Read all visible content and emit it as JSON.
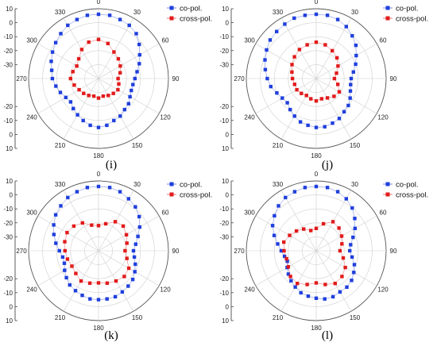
{
  "chart_data": [
    {
      "type": "polar-scatter",
      "caption": "(i)",
      "legend": [
        "co-pol.",
        "cross-pol."
      ],
      "angle_ticks": [
        "0",
        "30",
        "60",
        "90",
        "120",
        "150",
        "180",
        "210",
        "240",
        "270",
        "300",
        "330"
      ],
      "radial_ticks_upper": [
        "10",
        "0",
        "-10",
        "-20",
        "-30"
      ],
      "radial_ticks_lower": [
        "-20",
        "-10",
        "0",
        "10"
      ],
      "rlim": [
        -40,
        10
      ],
      "colors": {
        "co": "#1f3fdc",
        "cross": "#e11b1b"
      },
      "series": [
        {
          "name": "co-pol.",
          "theta": [
            0,
            10,
            20,
            30,
            40,
            50,
            60,
            70,
            80,
            90,
            100,
            110,
            120,
            130,
            140,
            150,
            160,
            170,
            180,
            190,
            200,
            210,
            220,
            230,
            240,
            250,
            260,
            270,
            280,
            290,
            300,
            310,
            320,
            330,
            340,
            350
          ],
          "r": [
            6,
            6,
            5,
            4,
            2,
            -2,
            -6,
            -9,
            -12,
            -14,
            -15,
            -15,
            -14,
            -12,
            -11,
            -9,
            -8,
            -6,
            -5,
            -6,
            -8,
            -10,
            -12,
            -14,
            -13,
            -11,
            -9,
            -7,
            -6,
            -4,
            -2,
            0,
            2,
            4,
            5,
            6
          ]
        },
        {
          "name": "cross-pol.",
          "theta": [
            0,
            15,
            30,
            45,
            60,
            75,
            90,
            105,
            120,
            135,
            150,
            165,
            180,
            195,
            210,
            225,
            240,
            255,
            270,
            285,
            300,
            315,
            330,
            345
          ],
          "r": [
            -12,
            -14,
            -18,
            -20,
            -22,
            -24,
            -26,
            -25,
            -24,
            -25,
            -26,
            -27,
            -26,
            -27,
            -26,
            -25,
            -24,
            -22,
            -20,
            -21,
            -22,
            -20,
            -16,
            -13
          ]
        }
      ]
    },
    {
      "type": "polar-scatter",
      "caption": "(j)",
      "legend": [
        "co-pol.",
        "cross-pol."
      ],
      "angle_ticks": [
        "0",
        "30",
        "60",
        "90",
        "120",
        "150",
        "180",
        "210",
        "240",
        "270",
        "300",
        "330"
      ],
      "radial_ticks_upper": [
        "10",
        "0",
        "-10",
        "-20",
        "-30"
      ],
      "radial_ticks_lower": [
        "-20",
        "-10",
        "0",
        "10"
      ],
      "rlim": [
        -40,
        10
      ],
      "colors": {
        "co": "#1f3fdc",
        "cross": "#e11b1b"
      },
      "series": [
        {
          "name": "co-pol.",
          "theta": [
            0,
            10,
            20,
            30,
            40,
            50,
            60,
            70,
            80,
            90,
            100,
            110,
            120,
            130,
            140,
            150,
            160,
            170,
            180,
            190,
            200,
            210,
            220,
            230,
            240,
            250,
            260,
            270,
            280,
            290,
            300,
            310,
            320,
            330,
            340,
            350
          ],
          "r": [
            6,
            6,
            5,
            3,
            0,
            -3,
            -7,
            -10,
            -13,
            -15,
            -15,
            -14,
            -12,
            -10,
            -9,
            -7,
            -6,
            -5,
            -5,
            -6,
            -7,
            -9,
            -11,
            -13,
            -12,
            -10,
            -7,
            -5,
            -3,
            -1,
            1,
            3,
            4,
            5,
            6,
            6
          ]
        },
        {
          "name": "cross-pol.",
          "theta": [
            0,
            15,
            30,
            45,
            60,
            75,
            90,
            105,
            120,
            135,
            150,
            165,
            180,
            195,
            210,
            225,
            240,
            255,
            270,
            285,
            300,
            315,
            330,
            345
          ],
          "r": [
            -14,
            -15,
            -17,
            -19,
            -22,
            -25,
            -27,
            -24,
            -21,
            -22,
            -24,
            -25,
            -24,
            -25,
            -26,
            -25,
            -24,
            -24,
            -23,
            -22,
            -20,
            -18,
            -16,
            -15
          ]
        }
      ]
    },
    {
      "type": "polar-scatter",
      "caption": "(k)",
      "legend": [
        "co-pol.",
        "cross-pol."
      ],
      "angle_ticks": [
        "0",
        "30",
        "60",
        "90",
        "120",
        "150",
        "180",
        "210",
        "240",
        "270",
        "300",
        "330"
      ],
      "radial_ticks_upper": [
        "10",
        "0",
        "-10",
        "-20",
        "-30"
      ],
      "radial_ticks_lower": [
        "-20",
        "-10",
        "0",
        "10"
      ],
      "rlim": [
        -40,
        10
      ],
      "colors": {
        "co": "#1f3fdc",
        "cross": "#e11b1b"
      },
      "series": [
        {
          "name": "co-pol.",
          "theta": [
            0,
            10,
            20,
            30,
            40,
            50,
            60,
            70,
            80,
            90,
            100,
            110,
            120,
            130,
            140,
            150,
            160,
            170,
            180,
            190,
            200,
            210,
            220,
            230,
            240,
            250,
            260,
            270,
            280,
            290,
            300,
            310,
            320,
            330,
            340,
            350
          ],
          "r": [
            6,
            6,
            5,
            3,
            1,
            -2,
            -6,
            -10,
            -13,
            -15,
            -14,
            -12,
            -10,
            -8,
            -7,
            -6,
            -5,
            -5,
            -5,
            -5,
            -6,
            -7,
            -8,
            -10,
            -12,
            -14,
            -14,
            -12,
            -9,
            -6,
            -3,
            0,
            2,
            4,
            5,
            6
          ]
        },
        {
          "name": "cross-pol.",
          "theta": [
            0,
            15,
            30,
            45,
            60,
            75,
            90,
            105,
            120,
            135,
            150,
            165,
            180,
            195,
            210,
            225,
            240,
            255,
            270,
            285,
            300,
            315,
            330,
            345
          ],
          "r": [
            -22,
            -20,
            -16,
            -15,
            -17,
            -19,
            -21,
            -19,
            -15,
            -14,
            -15,
            -16,
            -17,
            -16,
            -15,
            -17,
            -18,
            -17,
            -16,
            -15,
            -14,
            -15,
            -17,
            -21
          ]
        }
      ]
    },
    {
      "type": "polar-scatter",
      "caption": "(l)",
      "legend": [
        "co-pol.",
        "cross-pol."
      ],
      "angle_ticks": [
        "0",
        "30",
        "60",
        "90",
        "120",
        "150",
        "180",
        "210",
        "240",
        "270",
        "300",
        "330"
      ],
      "radial_ticks_upper": [
        "10",
        "0",
        "-10",
        "-20",
        "-30"
      ],
      "radial_ticks_lower": [
        "-20",
        "-10",
        "0",
        "10"
      ],
      "rlim": [
        -40,
        10
      ],
      "colors": {
        "co": "#1f3fdc",
        "cross": "#e11b1b"
      },
      "series": [
        {
          "name": "co-pol.",
          "theta": [
            0,
            10,
            20,
            30,
            40,
            50,
            60,
            70,
            80,
            90,
            100,
            110,
            120,
            130,
            140,
            150,
            160,
            170,
            180,
            190,
            200,
            210,
            220,
            230,
            240,
            250,
            260,
            270,
            280,
            290,
            300,
            310,
            320,
            330,
            340,
            350
          ],
          "r": [
            6,
            6,
            5,
            3,
            0,
            -4,
            -8,
            -12,
            -15,
            -16,
            -14,
            -11,
            -9,
            -7,
            -6,
            -6,
            -5,
            -5,
            -6,
            -7,
            -8,
            -10,
            -12,
            -14,
            -16,
            -18,
            -17,
            -15,
            -12,
            -8,
            -4,
            -1,
            2,
            4,
            5,
            6
          ]
        },
        {
          "name": "cross-pol.",
          "theta": [
            0,
            15,
            30,
            45,
            60,
            75,
            90,
            105,
            120,
            135,
            150,
            165,
            180,
            195,
            210,
            225,
            240,
            255,
            270,
            285,
            300,
            315,
            330,
            345
          ],
          "r": [
            -24,
            -20,
            -16,
            -17,
            -19,
            -21,
            -23,
            -20,
            -16,
            -14,
            -13,
            -15,
            -17,
            -15,
            -13,
            -14,
            -17,
            -18,
            -17,
            -16,
            -18,
            -20,
            -22,
            -25
          ]
        }
      ]
    }
  ]
}
